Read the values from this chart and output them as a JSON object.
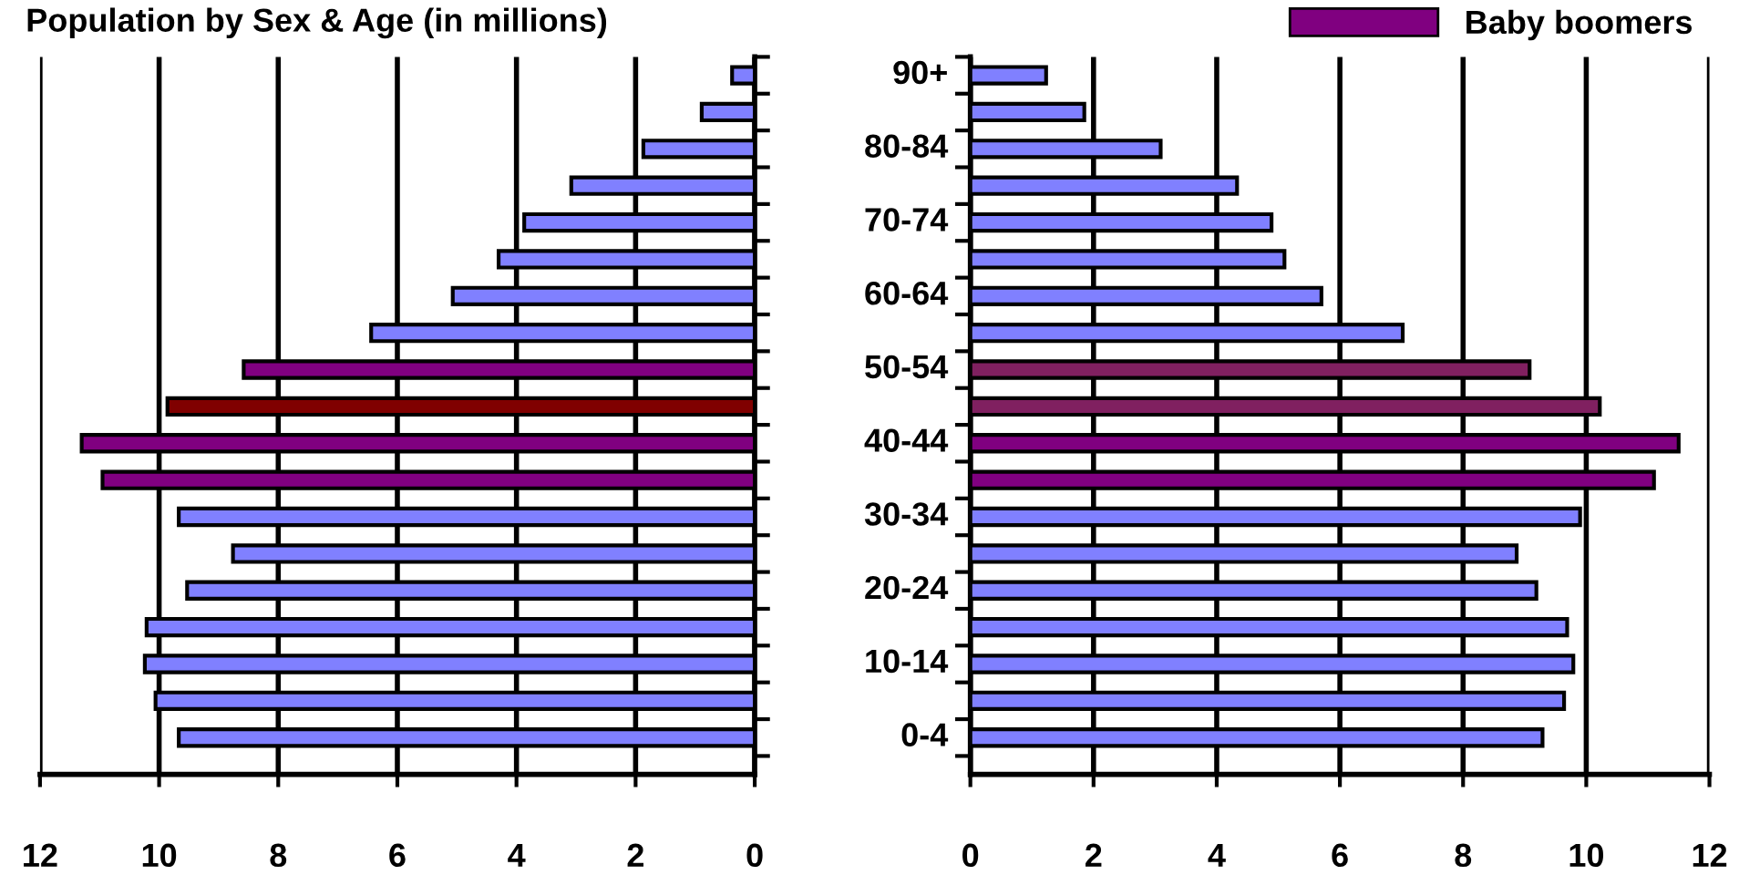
{
  "chart_data": [
    {
      "type": "bar",
      "orientation": "horizontal",
      "title": "Population by Sex & Age (in millions)",
      "categories": [
        null,
        null,
        null,
        null,
        null,
        null,
        null,
        null,
        null,
        null,
        null,
        null,
        null,
        null,
        null,
        null,
        null,
        null,
        null
      ],
      "xlim": [
        12,
        0
      ],
      "xticks": [
        12,
        10,
        8,
        6,
        4,
        2,
        0
      ],
      "grid": "x",
      "tick_labels": "x",
      "series": [
        {
          "color": "#8080ff",
          "values": [
            0.38,
            0.89,
            1.87,
            3.08,
            3.87,
            4.3,
            5.07,
            6.44,
            null,
            null,
            null,
            null,
            9.67,
            8.76,
            9.53,
            10.21,
            10.24,
            10.06,
            9.67
          ]
        },
        {
          "colors": [
            "#800080",
            "#800080",
            "#800080",
            "#800080",
            "#800080",
            "#800080",
            "#800080",
            "#800080",
            "#800080",
            "#800000",
            "#800080",
            "#800080",
            "#800080",
            "#800080",
            "#800080",
            "#800080",
            "#800080",
            "#800080",
            "#800080"
          ],
          "values": [
            null,
            null,
            null,
            null,
            null,
            null,
            null,
            null,
            8.58,
            9.86,
            11.3,
            10.95,
            null,
            null,
            null,
            null,
            null,
            null,
            null
          ]
        }
      ]
    },
    {
      "type": "bar",
      "orientation": "horizontal",
      "categories": [
        "90+",
        null,
        "80-84",
        null,
        "70-74",
        null,
        "60-64",
        null,
        "50-54",
        null,
        "40-44",
        null,
        "30-34",
        null,
        "20-24",
        null,
        "10-14",
        null,
        "0-4"
      ],
      "xlim": [
        0,
        12
      ],
      "xticks": [
        0,
        2,
        4,
        6,
        8,
        10,
        12
      ],
      "grid": "x",
      "legend": "top right",
      "series": [
        {
          "color": "#8080ff",
          "values": [
            1.23,
            1.85,
            3.09,
            4.33,
            4.89,
            5.1,
            5.7,
            7.02,
            null,
            null,
            null,
            null,
            9.9,
            8.87,
            9.19,
            9.69,
            9.79,
            9.64,
            9.29
          ]
        },
        {
          "name": "Baby boomers",
          "color": "#800080",
          "colors": [
            "#800080",
            "#800080",
            "#800080",
            "#800080",
            "#800080",
            "#800080",
            "#800080",
            "#800080",
            "#802060",
            "#802060",
            "#800080",
            "#800080",
            "#800080",
            "#800080",
            "#800080",
            "#800080",
            "#800080",
            "#800080",
            "#800080"
          ],
          "values": [
            null,
            null,
            null,
            null,
            null,
            null,
            null,
            null,
            9.08,
            10.22,
            11.5,
            11.1,
            null,
            null,
            null,
            null,
            null,
            null,
            null
          ]
        }
      ]
    }
  ]
}
